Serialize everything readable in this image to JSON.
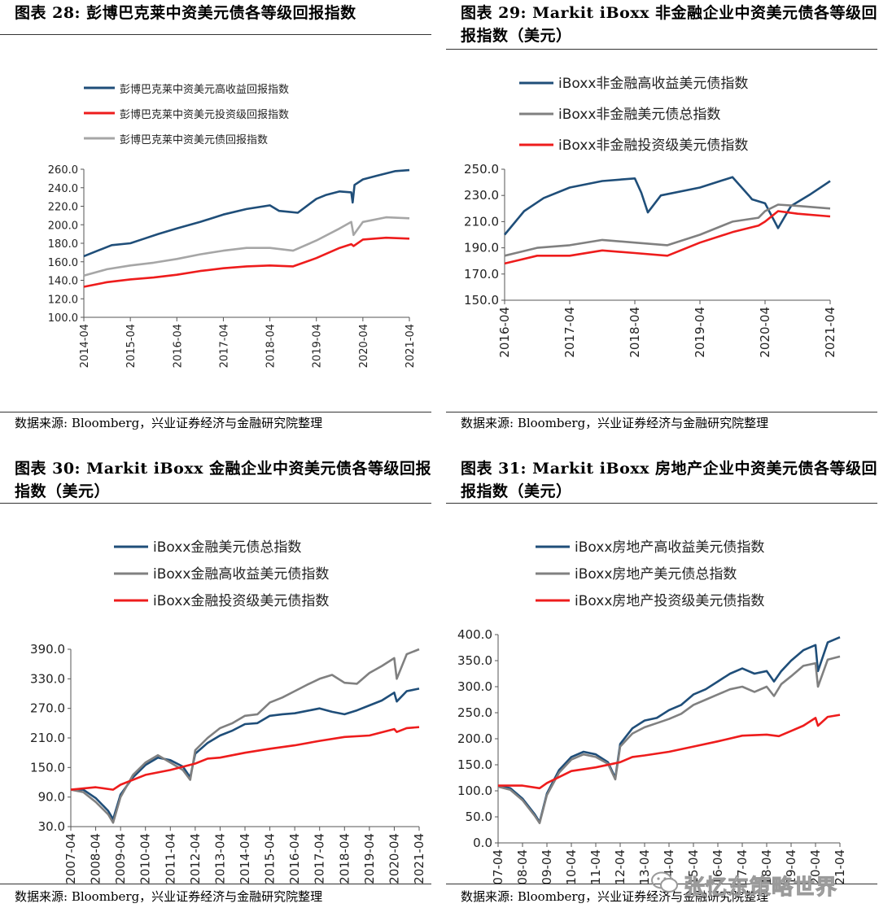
{
  "panels": [
    {
      "id": "p28",
      "title": "图表 28:  彭博巴克莱中资美元债各等级回报指数",
      "source": "数据来源:  Bloomberg，兴业证券经济与金融研究院整理",
      "chart_data": {
        "type": "line",
        "ylim": [
          100,
          260
        ],
        "yticks": [
          "260.0",
          "240.0",
          "220.0",
          "200.0",
          "180.0",
          "160.0",
          "140.0",
          "120.0",
          "100.0"
        ],
        "xticks": [
          "2014-04",
          "2015-04",
          "2016-04",
          "2017-04",
          "2018-04",
          "2019-04",
          "2020-04",
          "2021-04"
        ],
        "legend_placement": "top-left",
        "series": [
          {
            "name": "彭博巴克莱中资美元高收益回报指数",
            "color": "#1f4e79",
            "x": [
              0,
              0.3,
              0.6,
              1,
              1.3,
              1.6,
              2,
              2.5,
              3,
              3.5,
              4,
              4.2,
              4.4,
              4.6,
              5,
              5.2,
              5.5,
              5.75,
              5.78,
              5.82,
              6,
              6.3,
              6.7,
              7
            ],
            "y": [
              166,
              172,
              178,
              180,
              185,
              190,
              196,
              203,
              211,
              217,
              221,
              215,
              214,
              213,
              228,
              232,
              236,
              235,
              224,
              243,
              249,
              253,
              258,
              259
            ]
          },
          {
            "name": "彭博巴克莱中资美元投资级回报指数",
            "color": "#ee1c1c",
            "x": [
              0,
              0.5,
              1,
              1.5,
              2,
              2.5,
              3,
              3.5,
              4,
              4.5,
              5,
              5.5,
              5.75,
              5.8,
              6,
              6.5,
              7
            ],
            "y": [
              133,
              138,
              141,
              143,
              146,
              150,
              153,
              155,
              156,
              155,
              164,
              175,
              179,
              177,
              184,
              186,
              185
            ]
          },
          {
            "name": "彭博巴克莱中资美元债回报指数",
            "color": "#a6a6a6",
            "x": [
              0,
              0.5,
              1,
              1.5,
              2,
              2.5,
              3,
              3.5,
              4,
              4.5,
              5,
              5.5,
              5.75,
              5.8,
              6,
              6.5,
              7
            ],
            "y": [
              145,
              152,
              156,
              159,
              163,
              168,
              172,
              175,
              175,
              172,
              183,
              196,
              203,
              189,
              203,
              208,
              207
            ]
          }
        ]
      }
    },
    {
      "id": "p29",
      "title": "图表 29:  Markit iBoxx 非金融企业中资美元债各等级回报指数（美元）",
      "source": "数据来源:  Bloomberg，兴业证券经济与金融研究院整理",
      "chart_data": {
        "type": "line",
        "ylim": [
          150,
          250
        ],
        "yticks": [
          "250.0",
          "230.0",
          "210.0",
          "190.0",
          "170.0",
          "150.0"
        ],
        "xticks": [
          "2016-04",
          "2017-04",
          "2018-04",
          "2019-04",
          "2020-04",
          "2021-04"
        ],
        "legend_placement": "top-left",
        "series": [
          {
            "name": "iBoxx非金融高收益美元债指数",
            "color": "#1f4e79",
            "x": [
              0,
              0.3,
              0.6,
              1,
              1.5,
              2,
              2.1,
              2.2,
              2.4,
              3,
              3.5,
              3.75,
              3.8,
              4,
              4.2,
              4.4,
              4.7,
              5
            ],
            "y": [
              200,
              218,
              228,
              236,
              241,
              243,
              232,
              217,
              230,
              236,
              244,
              230,
              227,
              224,
              205,
              222,
              231,
              241
            ]
          },
          {
            "name": "iBoxx非金融美元债总指数",
            "color": "#808080",
            "x": [
              0,
              0.5,
              1,
              1.5,
              2,
              2.5,
              3,
              3.5,
              3.9,
              4,
              4.2,
              4.5,
              5
            ],
            "y": [
              184,
              190,
              192,
              196,
              194,
              192,
              200,
              210,
              213,
              218,
              223,
              222,
              220
            ]
          },
          {
            "name": "iBoxx非金融投资级美元债指数",
            "color": "#ee1c1c",
            "x": [
              0,
              0.5,
              1,
              1.5,
              2,
              2.5,
              3,
              3.5,
              3.9,
              4,
              4.2,
              4.5,
              5
            ],
            "y": [
              178,
              184,
              184,
              188,
              186,
              184,
              194,
              202,
              207,
              210,
              218,
              216,
              214
            ]
          }
        ]
      }
    },
    {
      "id": "p30",
      "title": "图表 30:  Markit iBoxx 金融企业中资美元债各等级回报指数（美元）",
      "source": "数据来源:  Bloomberg，兴业证券经济与金融研究院整理",
      "chart_data": {
        "type": "line",
        "ylim": [
          30,
          390
        ],
        "yticks": [
          "390.0",
          "330.0",
          "270.0",
          "210.0",
          "150.0",
          "90.0",
          "30.0"
        ],
        "xticks": [
          "2007-04",
          "2008-04",
          "2009-04",
          "2010-04",
          "2011-04",
          "2012-04",
          "2013-04",
          "2014-04",
          "2015-04",
          "2016-04",
          "2017-04",
          "2018-04",
          "2019-04",
          "2020-04",
          "2021-04"
        ],
        "legend_placement": "top-center",
        "series": [
          {
            "name": "iBoxx金融美元债总指数",
            "color": "#1f4e79",
            "x": [
              0,
              0.5,
              1,
              1.5,
              1.7,
              2,
              2.5,
              3,
              3.5,
              4,
              4.5,
              4.8,
              5,
              5.5,
              6,
              6.5,
              7,
              7.5,
              8,
              8.5,
              9,
              9.5,
              10,
              10.5,
              11,
              11.5,
              12,
              12.5,
              13,
              13.1,
              13.5,
              14
            ],
            "y": [
              105,
              105,
              88,
              62,
              45,
              95,
              130,
              155,
              170,
              165,
              152,
              130,
              178,
              200,
              215,
              225,
              238,
              240,
              255,
              258,
              260,
              265,
              270,
              263,
              258,
              266,
              276,
              286,
              302,
              284,
              305,
              310
            ]
          },
          {
            "name": "iBoxx金融高收益美元债指数",
            "color": "#808080",
            "x": [
              0,
              0.5,
              1,
              1.5,
              1.7,
              2,
              2.5,
              3,
              3.5,
              4,
              4.5,
              4.8,
              5,
              5.5,
              6,
              6.5,
              7,
              7.5,
              8,
              8.5,
              9,
              9.5,
              10,
              10.5,
              11,
              11.5,
              12,
              12.5,
              13,
              13.1,
              13.5,
              14
            ],
            "y": [
              105,
              100,
              80,
              55,
              38,
              90,
              135,
              160,
              175,
              160,
              145,
              125,
              185,
              210,
              230,
              240,
              255,
              258,
              282,
              292,
              305,
              318,
              330,
              338,
              322,
              320,
              342,
              356,
              372,
              330,
              380,
              390
            ]
          },
          {
            "name": "iBoxx金融投资级美元债指数",
            "color": "#ee1c1c",
            "x": [
              0,
              1,
              1.7,
              2,
              3,
              4,
              5,
              5.5,
              6,
              7,
              8,
              9,
              10,
              11,
              12,
              13,
              13.1,
              13.5,
              14
            ],
            "y": [
              105,
              110,
              105,
              115,
              135,
              145,
              158,
              168,
              170,
              180,
              188,
              195,
              204,
              212,
              215,
              228,
              222,
              230,
              232
            ]
          }
        ]
      }
    },
    {
      "id": "p31",
      "title": "图表 31:  Markit iBoxx 房地产企业中资美元债各等级回报指数（美元）",
      "source": "数据来源:  Bloomberg，兴业证券经济与金融研究院整理",
      "chart_data": {
        "type": "line",
        "ylim": [
          0,
          400
        ],
        "yticks": [
          "400.0",
          "350.0",
          "300.0",
          "250.0",
          "200.0",
          "150.0",
          "100.0",
          "50.0",
          "0.0"
        ],
        "xticks": [
          "2007-04",
          "2008-04",
          "2009-04",
          "2010-04",
          "2011-04",
          "2012-04",
          "2013-04",
          "2014-04",
          "2015-04",
          "2016-04",
          "2017-04",
          "2018-04",
          "2019-04",
          "2020-04",
          "2021-04"
        ],
        "legend_placement": "top-center",
        "series": [
          {
            "name": "iBoxx房地产高收益美元债指数",
            "color": "#1f4e79",
            "x": [
              0,
              0.5,
              1,
              1.5,
              1.7,
              2,
              2.5,
              3,
              3.5,
              4,
              4.5,
              4.8,
              5,
              5.5,
              6,
              6.5,
              7,
              7.5,
              8,
              8.5,
              9,
              9.5,
              10,
              10.5,
              11,
              11.3,
              11.6,
              12,
              12.5,
              13,
              13.1,
              13.5,
              14
            ],
            "y": [
              110,
              105,
              85,
              55,
              40,
              95,
              140,
              165,
              175,
              170,
              155,
              125,
              190,
              220,
              235,
              240,
              255,
              265,
              285,
              295,
              310,
              325,
              335,
              325,
              330,
              310,
              330,
              350,
              370,
              380,
              330,
              385,
              395
            ]
          },
          {
            "name": "iBoxx房地产美元债总指数",
            "color": "#808080",
            "x": [
              0,
              0.5,
              1,
              1.5,
              1.7,
              2,
              2.5,
              3,
              3.5,
              4,
              4.5,
              4.8,
              5,
              5.5,
              6,
              6.5,
              7,
              7.5,
              8,
              8.5,
              9,
              9.5,
              10,
              10.5,
              11,
              11.3,
              11.6,
              12,
              12.5,
              13,
              13.1,
              13.5,
              14
            ],
            "y": [
              108,
              102,
              82,
              52,
              38,
              92,
              135,
              160,
              170,
              165,
              152,
              122,
              185,
              210,
              222,
              230,
              238,
              248,
              265,
              275,
              285,
              295,
              300,
              290,
              300,
              282,
              305,
              320,
              340,
              345,
              300,
              352,
              358
            ]
          },
          {
            "name": "iBoxx房地产投资级美元债指数",
            "color": "#ee1c1c",
            "x": [
              0,
              1,
              1.7,
              2,
              3,
              4,
              5,
              5.5,
              6,
              7,
              8,
              9,
              10,
              11,
              11.5,
              12,
              12.5,
              13,
              13.1,
              13.5,
              14
            ],
            "y": [
              110,
              110,
              105,
              115,
              138,
              145,
              155,
              165,
              168,
              175,
              185,
              195,
              206,
              208,
              205,
              215,
              225,
              240,
              225,
              242,
              246
            ]
          }
        ]
      }
    }
  ],
  "watermark": {
    "text": "张忆东策略世界",
    "icon": "wechat-icon"
  }
}
